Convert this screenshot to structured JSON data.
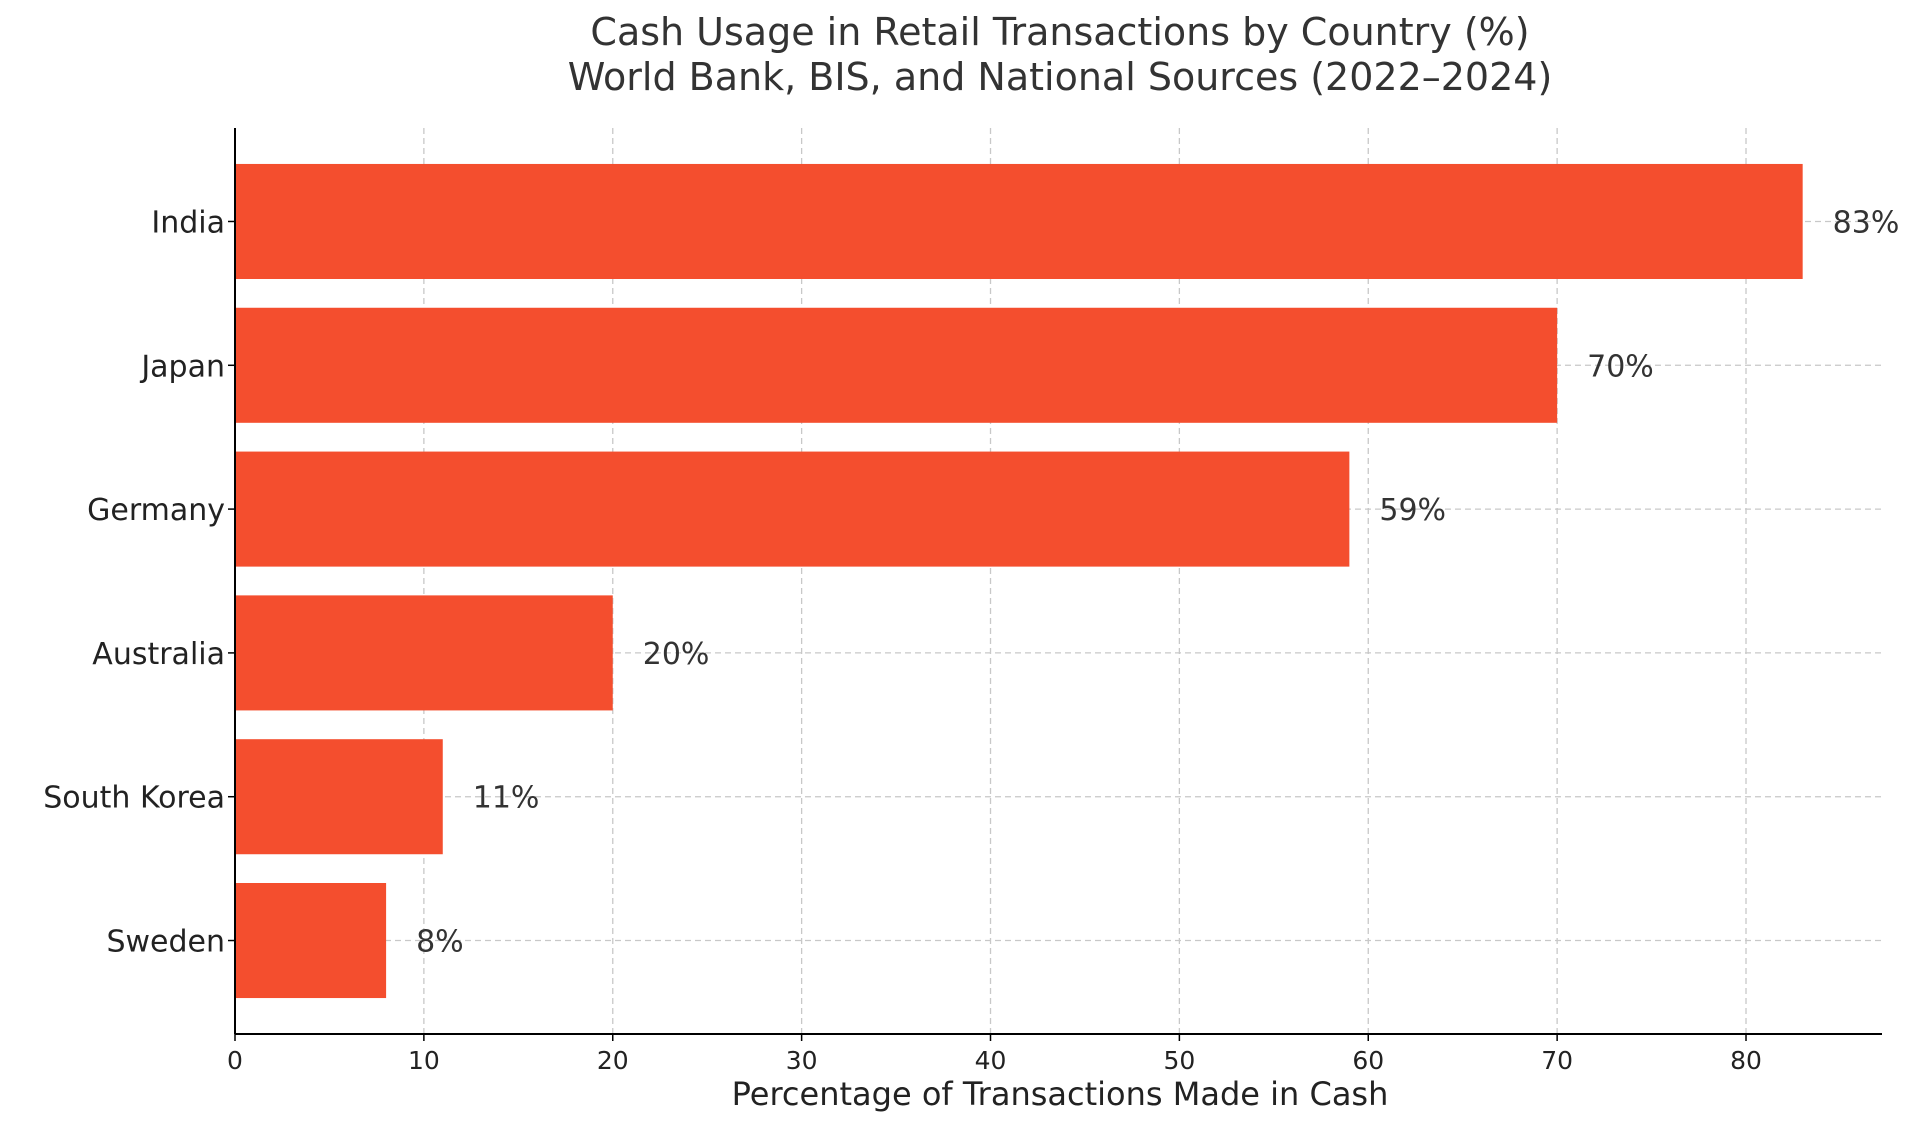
{
  "chart_data": {
    "type": "bar",
    "orientation": "horizontal",
    "title": "Cash Usage in Retail Transactions by Country (%)",
    "subtitle": "World Bank, BIS, and National Sources (2022–2024)",
    "xlabel": "Percentage of Transactions Made in Cash",
    "ylabel": "",
    "categories": [
      "India",
      "Japan",
      "Germany",
      "Australia",
      "South Korea",
      "Sweden"
    ],
    "values": [
      83,
      70,
      59,
      20,
      11,
      8
    ],
    "value_labels": [
      "83%",
      "70%",
      "59%",
      "20%",
      "11%",
      "8%"
    ],
    "xlim": [
      0,
      87.2
    ],
    "xticks": [
      0,
      10,
      20,
      30,
      40,
      50,
      60,
      70,
      80
    ],
    "xtick_labels": [
      "0",
      "10",
      "20",
      "30",
      "40",
      "50",
      "60",
      "70",
      "80"
    ],
    "grid": true,
    "bar_color": "#f44e2e"
  }
}
